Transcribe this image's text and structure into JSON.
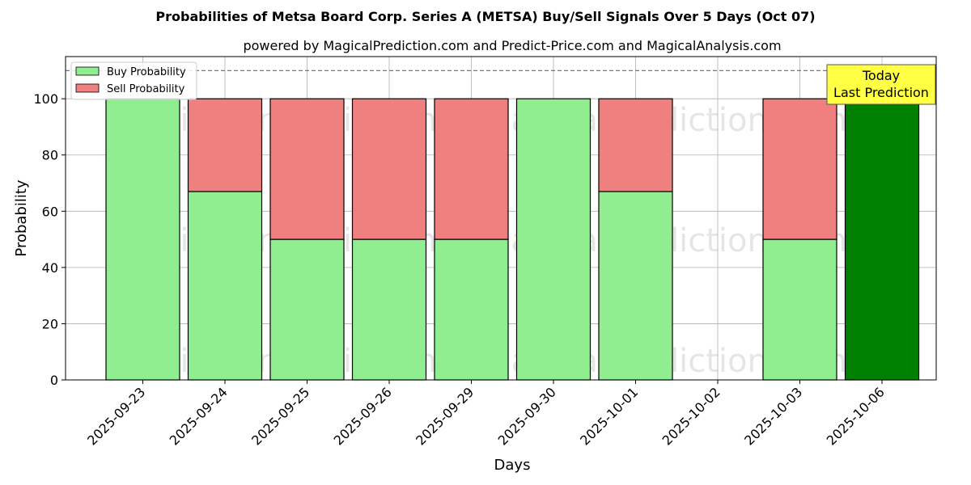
{
  "chart_data": {
    "type": "bar",
    "stacked": true,
    "title": "Probabilities of Metsa Board Corp. Series A (METSA) Buy/Sell Signals Over 5 Days (Oct 07)",
    "subtitle": "powered by MagicalPrediction.com and Predict-Price.com and MagicalAnalysis.com",
    "xlabel": "Days",
    "ylabel": "Probability",
    "ylim": [
      0,
      115
    ],
    "yticks": [
      0,
      20,
      40,
      60,
      80,
      100
    ],
    "grid": true,
    "legend_position": "top-left",
    "reference_line": 110,
    "categories": [
      "2025-09-23",
      "2025-09-24",
      "2025-09-25",
      "2025-09-26",
      "2025-09-29",
      "2025-09-30",
      "2025-10-01",
      "2025-10-02",
      "2025-10-03",
      "2025-10-06"
    ],
    "series": [
      {
        "name": "Buy Probability",
        "color": "#90ee90",
        "values": [
          100,
          67,
          50,
          50,
          50,
          100,
          67,
          0,
          50,
          100
        ]
      },
      {
        "name": "Sell Probability",
        "color": "#f08080",
        "values": [
          0,
          33,
          50,
          50,
          50,
          0,
          33,
          0,
          50,
          0
        ]
      }
    ],
    "highlight": {
      "index": 9,
      "color": "#008000"
    },
    "annotation": {
      "lines": [
        "Today",
        "Last Prediction"
      ],
      "color": "#ffff44"
    },
    "watermarks": [
      "MagicalAnalysis.com",
      "MagicalPrediction.com"
    ]
  }
}
